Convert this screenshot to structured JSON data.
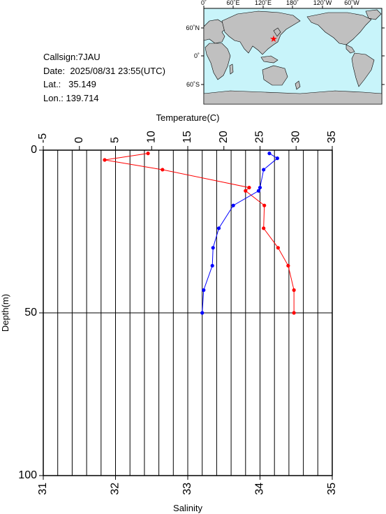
{
  "station": {
    "callsign_label": "Callsign:",
    "callsign": "7JAU",
    "date_label": "Date:",
    "date": "2025/08/31 23:55(UTC)",
    "lat_label": "Lat.:",
    "lat": "35.149",
    "lon_label": "Lon.:",
    "lon": "139.714"
  },
  "map": {
    "top_labels": [
      "0˚",
      "60˚E",
      "120˚E",
      "180˚",
      "120˚W",
      "60˚W"
    ],
    "left_labels": [
      "60˚N",
      "0˚",
      "60˚S"
    ],
    "ocean_color": "#c8f4fa",
    "land_color": "#c0c0c0",
    "marker": {
      "symbol": "star",
      "color": "#ff0000",
      "lat": 35.149,
      "lon": 139.714
    }
  },
  "chart_data": {
    "type": "line",
    "top_axis_label": "Temperature(C)",
    "bottom_axis_label": "Salinity",
    "y_axis_label": "Depth(m)",
    "temperature_range": [
      -5,
      35
    ],
    "temperature_ticks": [
      "-5",
      "0",
      "5",
      "10",
      "15",
      "20",
      "25",
      "30",
      "35"
    ],
    "salinity_range": [
      31,
      35
    ],
    "salinity_ticks": [
      "31",
      "32",
      "33",
      "34",
      "35"
    ],
    "depth_range": [
      0,
      100
    ],
    "depth_ticks": [
      "0",
      "50",
      "100"
    ],
    "grid": true,
    "series": [
      {
        "quantity": "temperature",
        "color": "#ff0000",
        "points": [
          {
            "depth": 1,
            "value": 9.5
          },
          {
            "depth": 3,
            "value": 3.5
          },
          {
            "depth": 6,
            "value": 11.5
          },
          {
            "depth": 11.5,
            "value": 23.5
          },
          {
            "depth": 12.5,
            "value": 23.0
          },
          {
            "depth": 17,
            "value": 25.6
          },
          {
            "depth": 24,
            "value": 25.5
          },
          {
            "depth": 30,
            "value": 27.5
          },
          {
            "depth": 35.5,
            "value": 28.9
          },
          {
            "depth": 43,
            "value": 29.7
          },
          {
            "depth": 50,
            "value": 29.7
          }
        ]
      },
      {
        "quantity": "salinity",
        "color": "#0000ff",
        "points": [
          {
            "depth": 1,
            "value": 34.13
          },
          {
            "depth": 2.5,
            "value": 34.24
          },
          {
            "depth": 6,
            "value": 34.05
          },
          {
            "depth": 11.5,
            "value": 34.0
          },
          {
            "depth": 12.5,
            "value": 33.98
          },
          {
            "depth": 17,
            "value": 33.63
          },
          {
            "depth": 24,
            "value": 33.43
          },
          {
            "depth": 30,
            "value": 33.35
          },
          {
            "depth": 35.5,
            "value": 33.34
          },
          {
            "depth": 43,
            "value": 33.22
          },
          {
            "depth": 50,
            "value": 33.2
          }
        ]
      }
    ]
  }
}
